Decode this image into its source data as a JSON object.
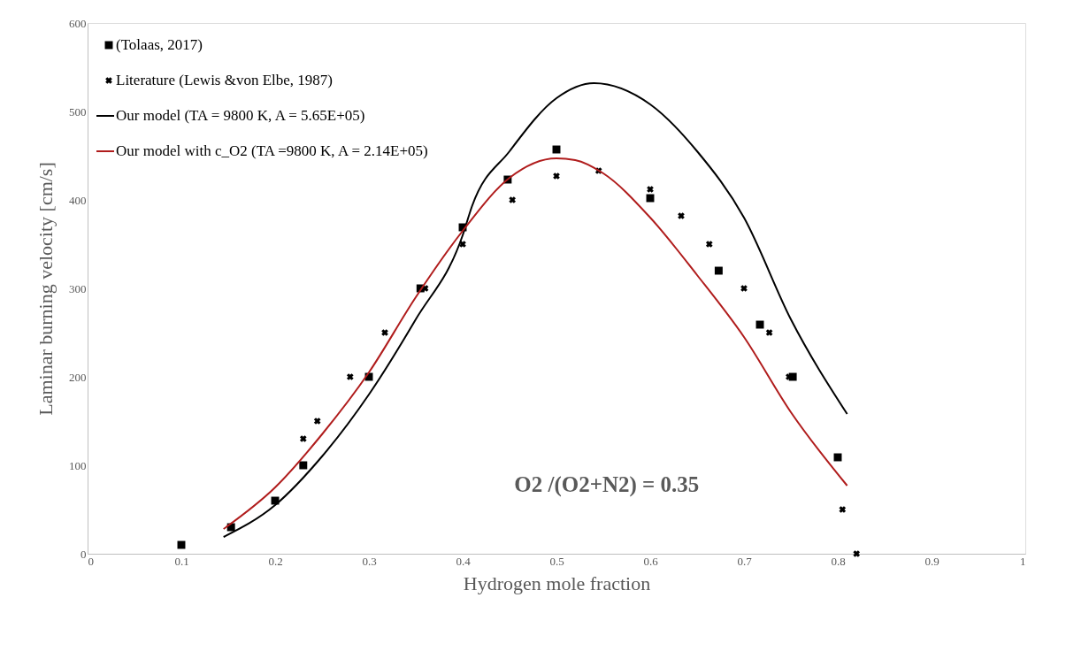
{
  "chart_data": {
    "type": "scatter",
    "xlabel": "Hydrogen mole fraction",
    "ylabel": "Laminar burning velocity [cm/s]",
    "xlim": [
      0,
      1
    ],
    "xticks": [
      0,
      0.1,
      0.2,
      0.3,
      0.4,
      0.5,
      0.6,
      0.7,
      0.8,
      0.9,
      1
    ],
    "ylim": [
      0,
      600
    ],
    "yticks": [
      0,
      100,
      200,
      300,
      400,
      500,
      600
    ],
    "grid": false,
    "legend": "top left",
    "annotations": [
      "O2 /(O2+N2) = 0.35"
    ],
    "series": [
      {
        "name": "(Tolaas, 2017)",
        "marker": "square",
        "color": "#000000",
        "x": [
          0.1,
          0.153,
          0.2,
          0.23,
          0.3,
          0.355,
          0.4,
          0.448,
          0.5,
          0.6,
          0.673,
          0.717,
          0.752,
          0.8
        ],
        "values": [
          10,
          30,
          60,
          100,
          200,
          300,
          369,
          423,
          457,
          402,
          320,
          259,
          200,
          109
        ]
      },
      {
        "name": "Literature (Lewis &von Elbe, 1987)",
        "marker": "cross",
        "color": "#000000",
        "x": [
          0.23,
          0.245,
          0.28,
          0.317,
          0.36,
          0.4,
          0.453,
          0.5,
          0.545,
          0.6,
          0.633,
          0.663,
          0.7,
          0.727,
          0.748,
          0.805,
          0.82
        ],
        "values": [
          130,
          150,
          200,
          250,
          300,
          350,
          400,
          427,
          433,
          412,
          382,
          350,
          300,
          250,
          200,
          50,
          0
        ]
      },
      {
        "name": "Our model (TA = 9800 K, A = 5.65E+05)",
        "type": "line",
        "marker": "none",
        "color": "#000000",
        "x": [
          0.145,
          0.2,
          0.25,
          0.3,
          0.35,
          0.4,
          0.41,
          0.45,
          0.5,
          0.54,
          0.6,
          0.65,
          0.7,
          0.75,
          0.81
        ],
        "values": [
          19,
          55,
          110,
          180,
          265,
          360,
          393,
          455,
          515,
          532,
          508,
          455,
          380,
          265,
          158
        ]
      },
      {
        "name": "Our model with c_O2 (TA =9800 K, A = 2.14E+05)",
        "type": "line",
        "marker": "none",
        "color": "#b01c1c",
        "x": [
          0.145,
          0.2,
          0.25,
          0.3,
          0.35,
          0.4,
          0.45,
          0.5,
          0.52,
          0.55,
          0.6,
          0.65,
          0.7,
          0.75,
          0.81
        ],
        "values": [
          28,
          75,
          135,
          205,
          290,
          365,
          425,
          447,
          445,
          430,
          380,
          315,
          245,
          160,
          77
        ]
      }
    ]
  }
}
